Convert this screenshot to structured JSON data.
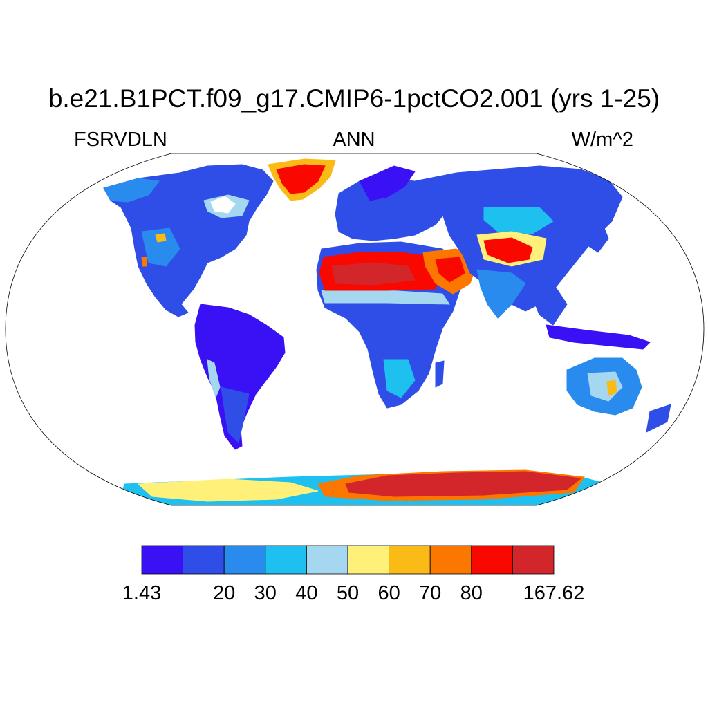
{
  "title": "b.e21.B1PCT.f09_g17.CMIP6-1pctCO2.001 (yrs 1-25)",
  "subtitles": {
    "variable": "FSRVDLN",
    "season": "ANN",
    "units": "W/m^2"
  },
  "colorbar": {
    "colors": [
      "#3a10f5",
      "#2f4ee8",
      "#2a8bef",
      "#1ec0f0",
      "#a6d7f0",
      "#fff07a",
      "#fbbb17",
      "#fb7700",
      "#f90800",
      "#d2262b"
    ],
    "labels": [
      "1.43",
      "20",
      "30",
      "40",
      "50",
      "60",
      "70",
      "80",
      "167.62"
    ]
  },
  "map": {
    "projection": "Robinson",
    "land_fill_base": "#3a10f5",
    "regions": [
      {
        "name": "north-america",
        "level": 1
      },
      {
        "name": "greenland",
        "level": 8
      },
      {
        "name": "south-america",
        "level": 0
      },
      {
        "name": "europe",
        "level": 1
      },
      {
        "name": "africa-central",
        "level": 1
      },
      {
        "name": "sahara",
        "level": 8
      },
      {
        "name": "arabia",
        "level": 7
      },
      {
        "name": "asia",
        "level": 1
      },
      {
        "name": "tibet",
        "level": 5
      },
      {
        "name": "taklamakan",
        "level": 8
      },
      {
        "name": "india",
        "level": 2
      },
      {
        "name": "australia",
        "level": 3
      },
      {
        "name": "antarctica-west",
        "level": 5
      },
      {
        "name": "antarctica-east",
        "level": 9
      }
    ]
  }
}
